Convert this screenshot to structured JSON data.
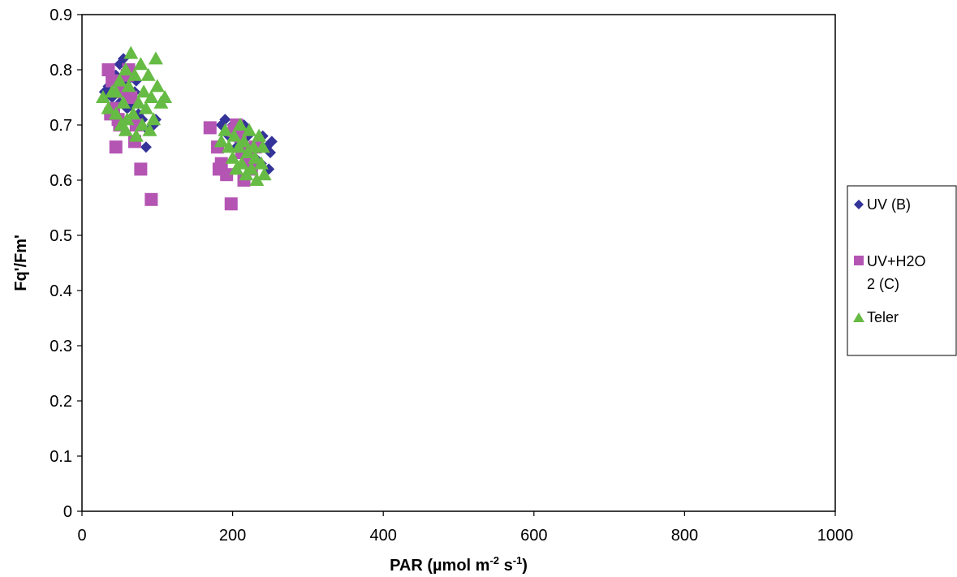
{
  "chart_data": {
    "type": "scatter",
    "xlabel": "PAR (µmol m-2 s-1)",
    "xlabel_parts": {
      "base": "PAR (µmol m",
      "sup1": "-2",
      "mid": " s",
      "sup2": "-1",
      "end": ")"
    },
    "ylabel": "Fq'/Fm'",
    "xlim": [
      0,
      1000
    ],
    "ylim": [
      0,
      0.9
    ],
    "x_ticks": [
      "0",
      "200",
      "400",
      "600",
      "800",
      "1000"
    ],
    "y_ticks": [
      "0",
      "0.1",
      "0.2",
      "0.3",
      "0.4",
      "0.5",
      "0.6",
      "0.7",
      "0.8",
      "0.9"
    ],
    "grid": false,
    "legend_position": "right",
    "series": [
      {
        "name": "UV (B)",
        "legend_lines": [
          "UV (B)"
        ],
        "marker": "diamond",
        "color": "#333399",
        "points": [
          [
            30,
            0.76
          ],
          [
            35,
            0.77
          ],
          [
            40,
            0.75
          ],
          [
            45,
            0.79
          ],
          [
            50,
            0.81
          ],
          [
            55,
            0.82
          ],
          [
            60,
            0.78
          ],
          [
            65,
            0.74
          ],
          [
            70,
            0.76
          ],
          [
            75,
            0.72
          ],
          [
            80,
            0.71
          ],
          [
            85,
            0.66
          ],
          [
            88,
            0.69
          ],
          [
            95,
            0.7
          ],
          [
            98,
            0.71
          ],
          [
            60,
            0.73
          ],
          [
            50,
            0.74
          ],
          [
            72,
            0.78
          ],
          [
            185,
            0.7
          ],
          [
            190,
            0.71
          ],
          [
            200,
            0.7
          ],
          [
            210,
            0.69
          ],
          [
            215,
            0.7
          ],
          [
            220,
            0.68
          ],
          [
            228,
            0.66
          ],
          [
            235,
            0.67
          ],
          [
            240,
            0.68
          ],
          [
            245,
            0.66
          ],
          [
            250,
            0.65
          ],
          [
            252,
            0.67
          ],
          [
            248,
            0.62
          ],
          [
            238,
            0.63
          ],
          [
            230,
            0.64
          ],
          [
            225,
            0.62
          ],
          [
            205,
            0.66
          ],
          [
            195,
            0.68
          ]
        ]
      },
      {
        "name": "UV+H2O 2 (C)",
        "legend_lines": [
          "UV+H2O",
          "2 (C)"
        ],
        "marker": "square",
        "color": "#b455b4",
        "points": [
          [
            35,
            0.8
          ],
          [
            40,
            0.78
          ],
          [
            38,
            0.72
          ],
          [
            42,
            0.73
          ],
          [
            45,
            0.66
          ],
          [
            48,
            0.71
          ],
          [
            50,
            0.7
          ],
          [
            55,
            0.76
          ],
          [
            60,
            0.79
          ],
          [
            62,
            0.8
          ],
          [
            65,
            0.75
          ],
          [
            70,
            0.67
          ],
          [
            72,
            0.7
          ],
          [
            78,
            0.62
          ],
          [
            92,
            0.565
          ],
          [
            170,
            0.695
          ],
          [
            180,
            0.66
          ],
          [
            182,
            0.62
          ],
          [
            185,
            0.63
          ],
          [
            192,
            0.61
          ],
          [
            198,
            0.557
          ],
          [
            202,
            0.69
          ],
          [
            205,
            0.7
          ],
          [
            210,
            0.68
          ],
          [
            212,
            0.65
          ],
          [
            215,
            0.6
          ],
          [
            220,
            0.64
          ],
          [
            225,
            0.62
          ],
          [
            230,
            0.66
          ]
        ]
      },
      {
        "name": "Teler",
        "legend_lines": [
          "Teler"
        ],
        "marker": "triangle",
        "color": "#66bb44",
        "points": [
          [
            28,
            0.75
          ],
          [
            35,
            0.73
          ],
          [
            40,
            0.76
          ],
          [
            45,
            0.72
          ],
          [
            50,
            0.78
          ],
          [
            52,
            0.7
          ],
          [
            55,
            0.74
          ],
          [
            58,
            0.8
          ],
          [
            60,
            0.71
          ],
          [
            62,
            0.77
          ],
          [
            65,
            0.83
          ],
          [
            68,
            0.72
          ],
          [
            70,
            0.79
          ],
          [
            72,
            0.68
          ],
          [
            75,
            0.74
          ],
          [
            78,
            0.81
          ],
          [
            80,
            0.7
          ],
          [
            82,
            0.76
          ],
          [
            85,
            0.73
          ],
          [
            88,
            0.79
          ],
          [
            90,
            0.69
          ],
          [
            92,
            0.75
          ],
          [
            95,
            0.71
          ],
          [
            98,
            0.82
          ],
          [
            100,
            0.77
          ],
          [
            105,
            0.74
          ],
          [
            110,
            0.75
          ],
          [
            58,
            0.69
          ],
          [
            45,
            0.76
          ],
          [
            185,
            0.67
          ],
          [
            190,
            0.69
          ],
          [
            195,
            0.66
          ],
          [
            200,
            0.64
          ],
          [
            202,
            0.68
          ],
          [
            205,
            0.62
          ],
          [
            208,
            0.66
          ],
          [
            210,
            0.7
          ],
          [
            212,
            0.63
          ],
          [
            215,
            0.67
          ],
          [
            218,
            0.61
          ],
          [
            220,
            0.65
          ],
          [
            222,
            0.69
          ],
          [
            225,
            0.62
          ],
          [
            228,
            0.66
          ],
          [
            230,
            0.64
          ],
          [
            232,
            0.6
          ],
          [
            235,
            0.68
          ],
          [
            238,
            0.63
          ],
          [
            240,
            0.66
          ],
          [
            242,
            0.61
          ]
        ]
      }
    ]
  }
}
